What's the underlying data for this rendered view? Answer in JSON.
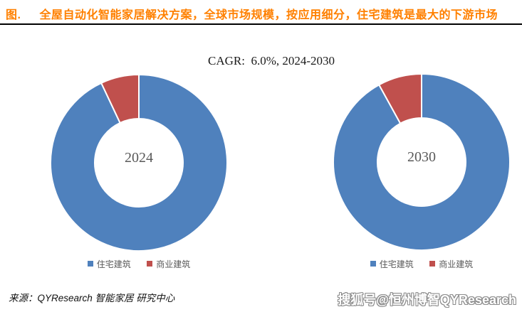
{
  "header": {
    "prefix": "图.",
    "title": "全屋自动化智能家居解决方案，全球市场规模，按应用细分，住宅建筑是最大的下游市场",
    "title_color": "#FF8000"
  },
  "annotation": {
    "cagr": "CAGR:  6.0%, 2024-2030"
  },
  "chart_data": [
    {
      "type": "pie",
      "subtype": "donut",
      "center_label": "2024",
      "categories": [
        "住宅建筑",
        "商业建筑"
      ],
      "values": [
        93,
        7
      ],
      "colors": [
        "#4F81BD",
        "#C0504D"
      ],
      "unit": "%",
      "legend_position": "bottom",
      "hole_ratio": 0.5,
      "start_angle_deg": 0,
      "note": "values estimated from arc angles; no data labels shown"
    },
    {
      "type": "pie",
      "subtype": "donut",
      "center_label": "2030",
      "categories": [
        "住宅建筑",
        "商业建筑"
      ],
      "values": [
        92,
        8
      ],
      "colors": [
        "#4F81BD",
        "#C0504D"
      ],
      "unit": "%",
      "legend_position": "bottom",
      "hole_ratio": 0.5,
      "start_angle_deg": 0,
      "note": "values estimated from arc angles; no data labels shown"
    }
  ],
  "footer": {
    "source": "来源：QYResearch 智能家居 研究中心",
    "watermark": "搜狐号@恒州博智QYResearch"
  }
}
